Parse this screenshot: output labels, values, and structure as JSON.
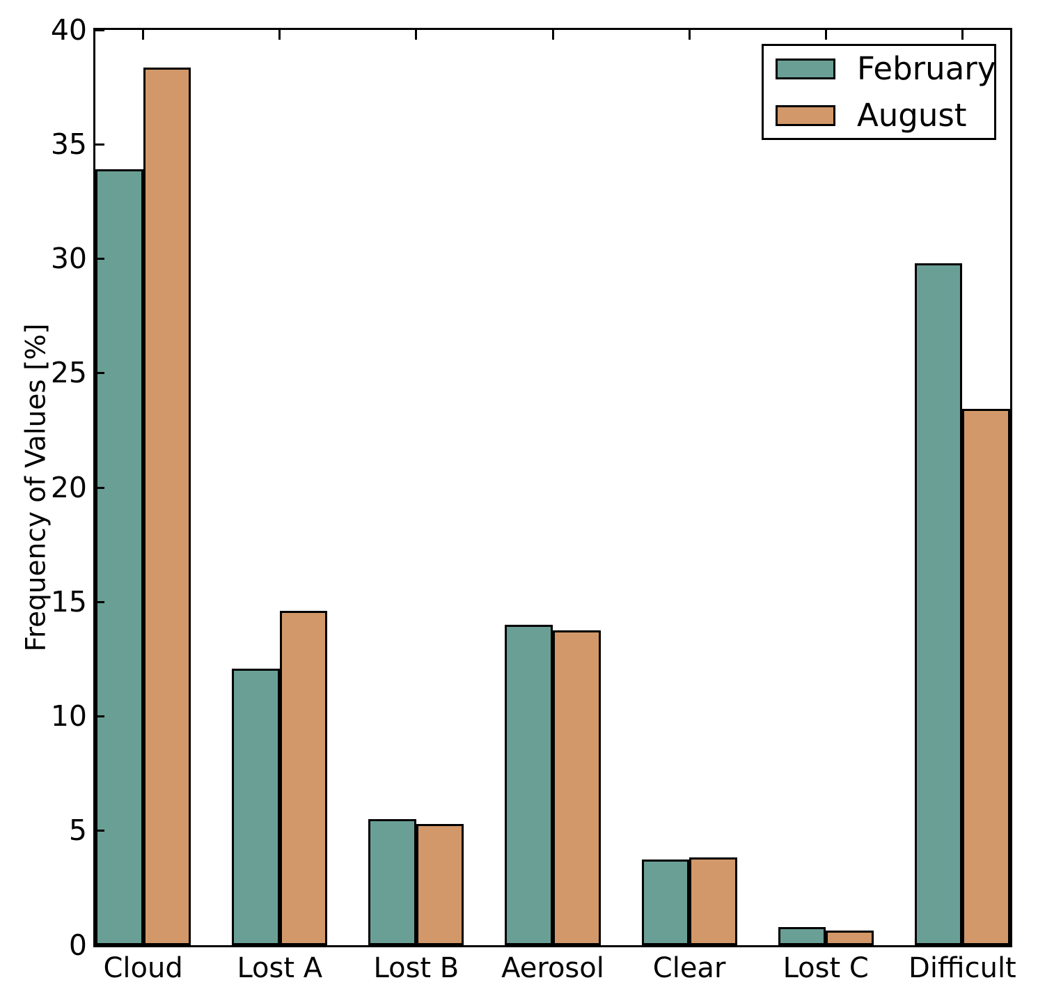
{
  "chart_data": {
    "type": "bar",
    "title": "",
    "xlabel": "",
    "ylabel": "Frequency of Values [%]",
    "categories": [
      "Cloud",
      "Lost A",
      "Lost B",
      "Aerosol",
      "Clear",
      "Lost C",
      "Difficult"
    ],
    "series": [
      {
        "name": "February",
        "color": "#6a9f96",
        "values": [
          33.9,
          12.1,
          5.5,
          14.0,
          3.75,
          0.8,
          29.8
        ]
      },
      {
        "name": "August",
        "color": "#d29869",
        "values": [
          38.35,
          14.6,
          5.3,
          13.75,
          3.85,
          0.65,
          23.45
        ]
      }
    ],
    "ylim": [
      0,
      40
    ],
    "yticks": [
      0,
      5,
      10,
      15,
      20,
      25,
      30,
      35,
      40
    ],
    "grid": false,
    "legend_position": "upper right",
    "bar_edge_color": "#000000",
    "background_color": "#ffffff"
  }
}
